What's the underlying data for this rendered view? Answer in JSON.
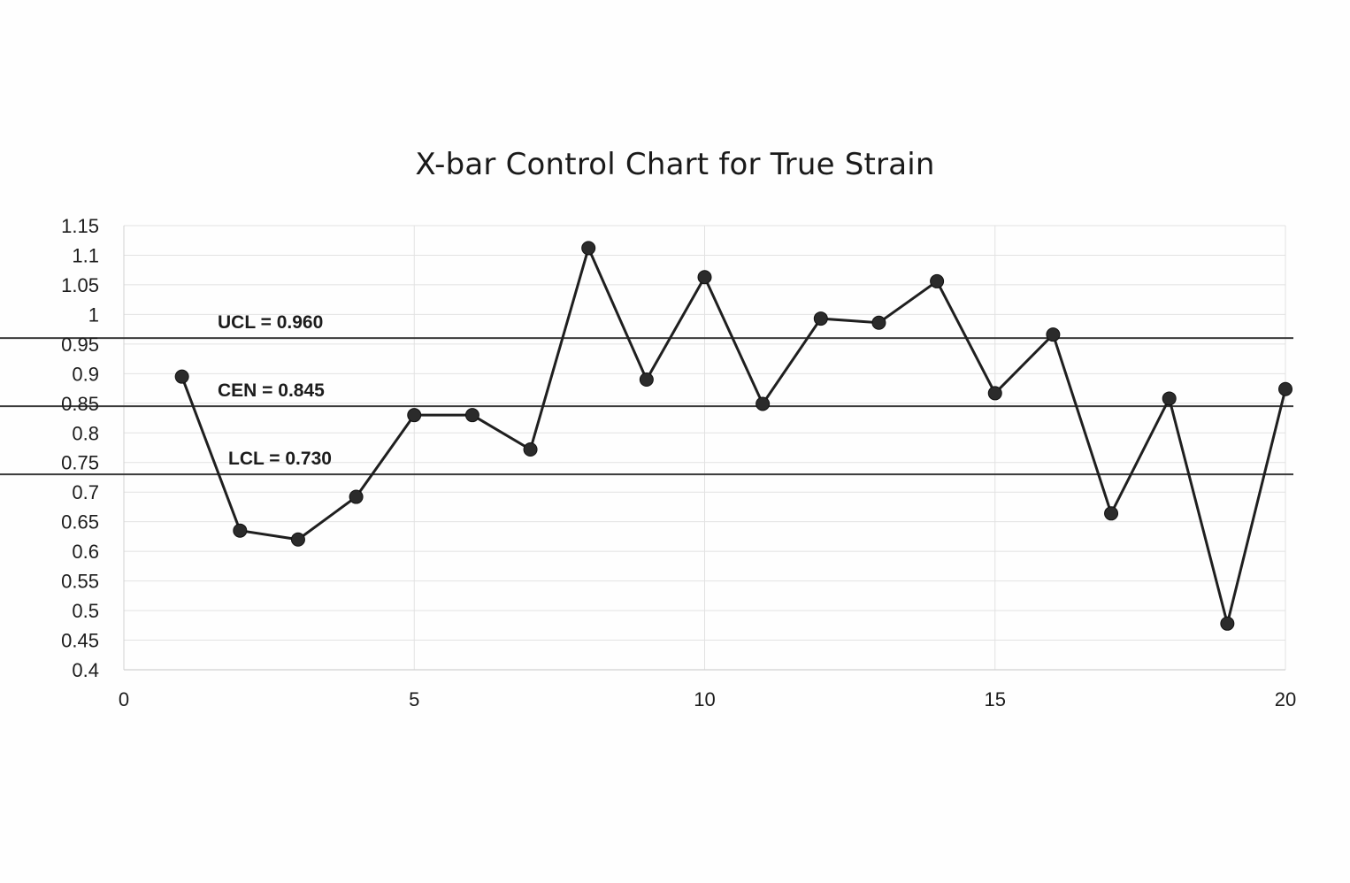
{
  "chart_data": {
    "type": "line",
    "title": "X-bar Control Chart for True Strain",
    "xlabel": "",
    "ylabel": "",
    "xlim": [
      0,
      20
    ],
    "ylim": [
      0.4,
      1.15
    ],
    "x_ticks": [
      "0",
      "5",
      "10",
      "15",
      "20"
    ],
    "y_ticks": [
      "0.4",
      "0.45",
      "0.5",
      "0.55",
      "0.6",
      "0.65",
      "0.7",
      "0.75",
      "0.8",
      "0.85",
      "0.9",
      "0.95",
      "1",
      "1.05",
      "1.1",
      "1.15"
    ],
    "grid": true,
    "x": [
      1,
      2,
      3,
      4,
      5,
      6,
      7,
      8,
      9,
      10,
      11,
      12,
      13,
      14,
      15,
      16,
      17,
      18,
      19,
      20
    ],
    "values": [
      0.895,
      0.635,
      0.62,
      0.692,
      0.83,
      0.83,
      0.772,
      1.112,
      0.89,
      1.063,
      0.849,
      0.993,
      0.986,
      1.056,
      0.867,
      0.966,
      0.664,
      0.858,
      0.478,
      0.874
    ],
    "control_limits": [
      {
        "label": "UCL = 0.960",
        "value": 0.96
      },
      {
        "label": "CEN = 0.845",
        "value": 0.845
      },
      {
        "label": "LCL = 0.730",
        "value": 0.73
      }
    ],
    "colors": {
      "line": "#1f1f1f",
      "marker": "#2b2b2b",
      "limit_line": "#3a3a3a",
      "grid": "#e2e2e2",
      "axis": "#d2d2d2"
    }
  }
}
